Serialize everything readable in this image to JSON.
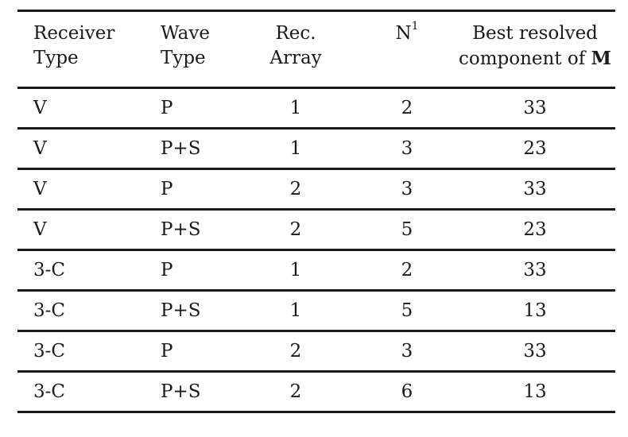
{
  "table": {
    "headers": {
      "receiver": [
        "Receiver",
        "Type"
      ],
      "wave": [
        "Wave",
        "Type"
      ],
      "array": [
        "Rec.",
        "Array"
      ],
      "n": {
        "base": "N",
        "sup": "1"
      },
      "best": {
        "line1": "Best resolved",
        "line2_prefix": "component of ",
        "line2_bold": "M"
      }
    },
    "rows": [
      {
        "receiver": "V",
        "wave": "P",
        "array": "1",
        "n": "2",
        "best": "33"
      },
      {
        "receiver": "V",
        "wave": "P+S",
        "array": "1",
        "n": "3",
        "best": "23"
      },
      {
        "receiver": "V",
        "wave": "P",
        "array": "2",
        "n": "3",
        "best": "33"
      },
      {
        "receiver": "V",
        "wave": "P+S",
        "array": "2",
        "n": "5",
        "best": "23"
      },
      {
        "receiver": "3-C",
        "wave": "P",
        "array": "1",
        "n": "2",
        "best": "33"
      },
      {
        "receiver": "3-C",
        "wave": "P+S",
        "array": "1",
        "n": "5",
        "best": "13"
      },
      {
        "receiver": "3-C",
        "wave": "P",
        "array": "2",
        "n": "3",
        "best": "33"
      },
      {
        "receiver": "3-C",
        "wave": "P+S",
        "array": "2",
        "n": "6",
        "best": "13"
      }
    ]
  }
}
